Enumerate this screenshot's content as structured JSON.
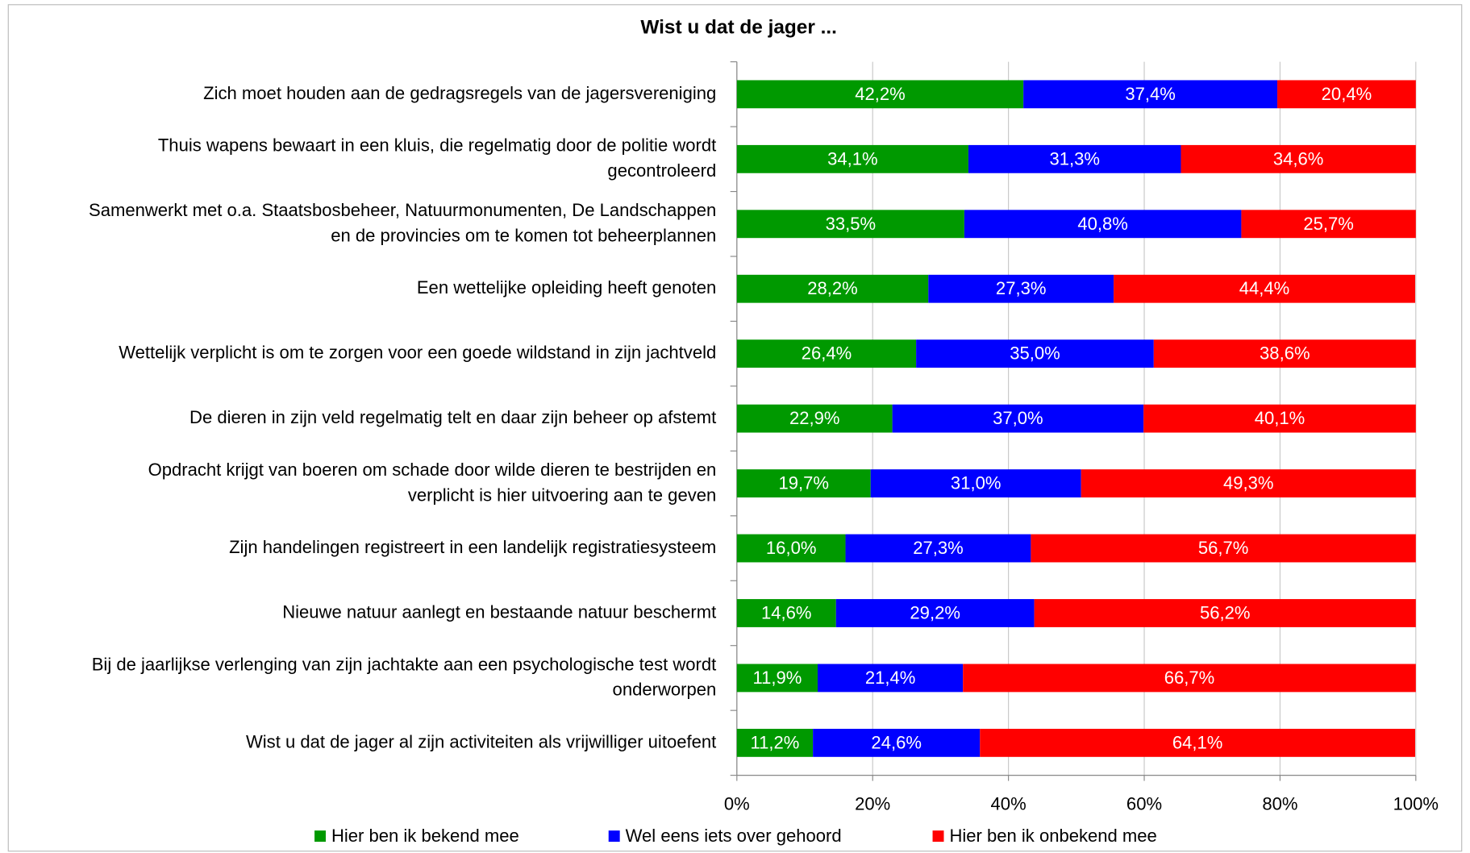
{
  "chart_data": {
    "type": "stacked-barh",
    "title": "Wist u dat de jager ...",
    "categories": [
      "Zich moet houden aan de gedragsregels van de jagersvereniging",
      "Thuis wapens bewaart in een kluis, die regelmatig door de politie wordt\ngecontroleerd",
      "Samenwerkt met o.a. Staatsbosbeheer, Natuurmonumenten, De Landschappen\nen de provincies om te komen tot beheerplannen",
      "Een wettelijke opleiding heeft genoten",
      "Wettelijk verplicht is om te zorgen voor een goede wildstand in zijn jachtveld",
      "De dieren in zijn veld regelmatig telt en daar zijn beheer op afstemt",
      "Opdracht krijgt van boeren om schade door wilde dieren te bestrijden en\nverplicht is hier uitvoering aan te geven",
      "Zijn handelingen registreert in een landelijk registratiesysteem",
      "Nieuwe natuur aanlegt en bestaande natuur beschermt",
      "Bij de jaarlijkse verlenging van zijn jachtakte aan een psychologische test wordt\nonderworpen",
      "Wist u dat de jager al zijn activiteiten als vrijwilliger uitoefent"
    ],
    "series": [
      {
        "name": "Hier ben ik bekend mee",
        "color": "#009900",
        "values": [
          42.2,
          34.1,
          33.5,
          28.2,
          26.4,
          22.9,
          19.7,
          16.0,
          14.6,
          11.9,
          11.2
        ],
        "value_labels": [
          "42,2%",
          "34,1%",
          "33,5%",
          "28,2%",
          "26,4%",
          "22,9%",
          "19,7%",
          "16,0%",
          "14,6%",
          "11,9%",
          "11,2%"
        ]
      },
      {
        "name": "Wel eens iets over gehoord",
        "color": "#0000ff",
        "values": [
          37.4,
          31.3,
          40.8,
          27.3,
          35.0,
          37.0,
          31.0,
          27.3,
          29.2,
          21.4,
          24.6
        ],
        "value_labels": [
          "37,4%",
          "31,3%",
          "40,8%",
          "27,3%",
          "35,0%",
          "37,0%",
          "31,0%",
          "27,3%",
          "29,2%",
          "21,4%",
          "24,6%"
        ]
      },
      {
        "name": "Hier ben ik onbekend mee",
        "color": "#ff0000",
        "values": [
          20.4,
          34.6,
          25.7,
          44.4,
          38.6,
          40.1,
          49.3,
          56.7,
          56.2,
          66.7,
          64.1
        ],
        "value_labels": [
          "20,4%",
          "34,6%",
          "25,7%",
          "44,4%",
          "38,6%",
          "40,1%",
          "49,3%",
          "56,7%",
          "56,2%",
          "66,7%",
          "64,1%"
        ]
      }
    ],
    "xlim": [
      0,
      100
    ],
    "xticks": [
      {
        "value": 0,
        "label": "0%"
      },
      {
        "value": 20,
        "label": "20%"
      },
      {
        "value": 40,
        "label": "40%"
      },
      {
        "value": 60,
        "label": "60%"
      },
      {
        "value": 80,
        "label": "80%"
      },
      {
        "value": 100,
        "label": "100%"
      }
    ],
    "grid": true,
    "legend": "bottom"
  }
}
